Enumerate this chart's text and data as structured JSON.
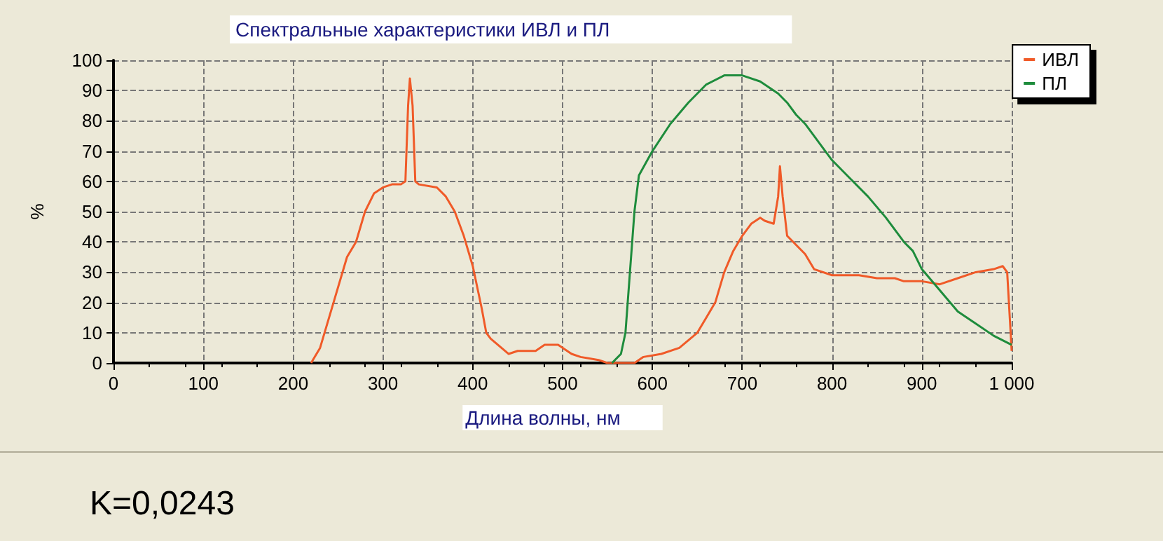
{
  "chart_data": {
    "type": "line",
    "title": "Спектральные характеристики ИВЛ и ПЛ",
    "xlabel": "Длина волны, нм",
    "ylabel": "%",
    "annotations": [
      "K=0,0243"
    ],
    "xlim": [
      0,
      1000
    ],
    "xticks": [
      0,
      100,
      200,
      300,
      400,
      500,
      600,
      700,
      800,
      900,
      {
        "value": 1000,
        "label": "1 000"
      }
    ],
    "ylim": [
      0,
      100
    ],
    "yticks": [
      0,
      10,
      20,
      30,
      40,
      50,
      60,
      70,
      80,
      90,
      100
    ],
    "grid": true,
    "legend": "top right",
    "marker": "none",
    "line_style": "solid",
    "series": [
      {
        "name": "ИВЛ",
        "color": "#f05a28",
        "x": [
          220,
          230,
          245,
          260,
          270,
          280,
          290,
          300,
          310,
          320,
          325,
          328,
          330,
          333,
          336,
          340,
          360,
          370,
          380,
          390,
          400,
          410,
          415,
          420,
          440,
          450,
          470,
          480,
          495,
          510,
          520,
          540,
          550,
          580,
          590,
          610,
          630,
          650,
          660,
          670,
          680,
          690,
          700,
          710,
          720,
          725,
          735,
          740,
          742,
          745,
          750,
          760,
          770,
          780,
          800,
          830,
          850,
          870,
          880,
          900,
          920,
          940,
          960,
          980,
          990,
          995,
          1000
        ],
        "values": [
          0,
          5,
          20,
          35,
          40,
          50,
          56,
          58,
          59,
          59,
          60,
          85,
          94,
          85,
          60,
          59,
          58,
          55,
          50,
          42,
          32,
          18,
          10,
          8,
          3,
          4,
          4,
          6,
          6,
          3,
          2,
          1,
          0,
          0,
          2,
          3,
          5,
          10,
          15,
          20,
          30,
          37,
          42,
          46,
          48,
          47,
          46,
          55,
          65,
          55,
          42,
          39,
          36,
          31,
          29,
          29,
          28,
          28,
          27,
          27,
          26,
          28,
          30,
          31,
          32,
          30,
          4
        ]
      },
      {
        "name": "ПЛ",
        "color": "#1e8c3c",
        "x": [
          555,
          565,
          570,
          575,
          580,
          585,
          600,
          620,
          640,
          660,
          680,
          700,
          720,
          740,
          750,
          760,
          770,
          790,
          800,
          820,
          840,
          860,
          880,
          890,
          900,
          920,
          940,
          960,
          980,
          1000
        ],
        "values": [
          0,
          3,
          10,
          30,
          50,
          62,
          70,
          79,
          86,
          92,
          95,
          95,
          93,
          89,
          86,
          82,
          79,
          71,
          67,
          61,
          55,
          48,
          40,
          37,
          31,
          24,
          17,
          13,
          9,
          6
        ]
      }
    ]
  }
}
